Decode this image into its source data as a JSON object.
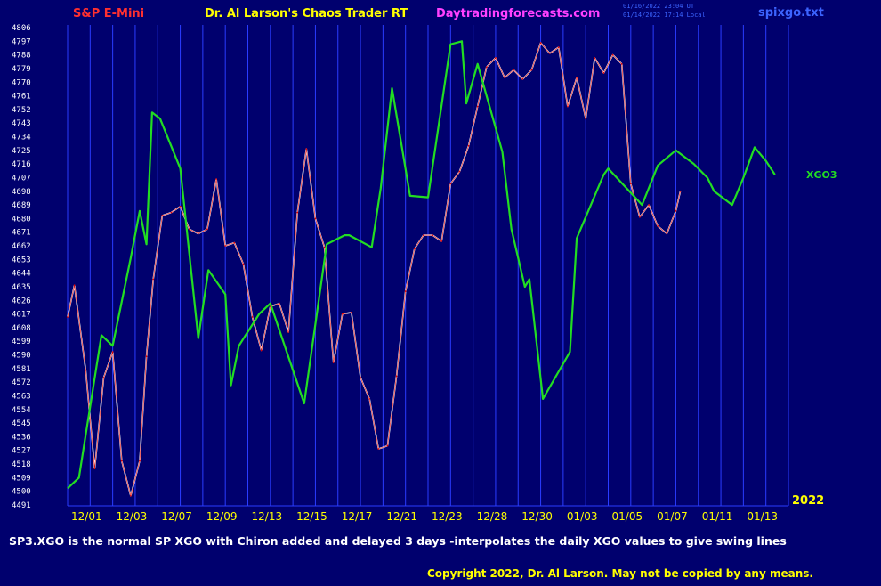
{
  "header": {
    "symbol": "S&P E-Mini",
    "app_title": "Dr. Al Larson's Chaos Trader RT",
    "website": "Daytradingforecasts.com",
    "timestamp_1": "01/16/2022 23:04 UT",
    "timestamp_2": "01/14/2022 17:14 Local",
    "filename": "spixgo.txt"
  },
  "footer": {
    "description": "SP3.XGO is the normal SP XGO with Chiron added and delayed 3 days -interpolates the daily XGO values to give swing lines",
    "copyright": "Copyright 2022, Dr. Al Larson. May not be copied by any means."
  },
  "colors": {
    "background": "#00006e",
    "grid": "#2a3cff",
    "price_line": "#ffffff",
    "price_accent": "#e00000",
    "xgo_line": "#22dd22",
    "tick_labels": "#ffff00",
    "symbol_text": "#ff3030",
    "website_text": "#ff40ff"
  },
  "chart_data": {
    "type": "line",
    "ylim": [
      4491,
      4806
    ],
    "y_ticks": [
      "4806",
      "4797",
      "4788",
      "4779",
      "4770",
      "4761",
      "4752",
      "4743",
      "4734",
      "4725",
      "4716",
      "4707",
      "4698",
      "4689",
      "4680",
      "4671",
      "4662",
      "4653",
      "4644",
      "4635",
      "4626",
      "4617",
      "4608",
      "4599",
      "4590",
      "4581",
      "4572",
      "4563",
      "4554",
      "4545",
      "4536",
      "4527",
      "4518",
      "4509",
      "4500",
      "4491"
    ],
    "x_ticks": [
      "12/01",
      "12/03",
      "12/07",
      "12/09",
      "12/13",
      "12/15",
      "12/17",
      "12/21",
      "12/23",
      "12/28",
      "12/30",
      "01/03",
      "01/05",
      "01/07",
      "01/11",
      "01/13"
    ],
    "year_label": "2022",
    "series": [
      {
        "name": "XGO3",
        "x": [
          0,
          0.5,
          1.5,
          2,
          2.8,
          3.2,
          3.5,
          3.75,
          4.1,
          5,
          5.8,
          6.25,
          7,
          7.25,
          7.6,
          8.5,
          9,
          10.5,
          11.5,
          12.3,
          12.5,
          13.5,
          13.9,
          14.4,
          15.2,
          16,
          17,
          17.5,
          17.7,
          18.2,
          19.3,
          19.7,
          20.3,
          20.5,
          21.1,
          22.3,
          22.6,
          23.8,
          24,
          24.5,
          25.5,
          26.2,
          27,
          27.8,
          28.4,
          28.7,
          29.5,
          30,
          30.5,
          31,
          31.4
        ],
        "y": [
          4502,
          4509,
          4603,
          4596,
          4654,
          4685,
          4663,
          4750,
          4746,
          4713,
          4601,
          4646,
          4630,
          4570,
          4596,
          4617,
          4624,
          4558,
          4663,
          4669,
          4669,
          4661,
          4700,
          4766,
          4695,
          4694,
          4795,
          4797,
          4756,
          4782,
          4724,
          4673,
          4635,
          4640,
          4561,
          4592,
          4667,
          4709,
          4713,
          4705,
          4689,
          4715,
          4725,
          4716,
          4707,
          4698,
          4689,
          4707,
          4727,
          4718,
          4709
        ]
      },
      {
        "name": "S&P E-Mini",
        "x": [
          0,
          0.3,
          0.8,
          1.2,
          1.6,
          2,
          2.4,
          2.8,
          3.2,
          3.5,
          3.8,
          4.2,
          4.6,
          5,
          5.4,
          5.8,
          6.2,
          6.6,
          7,
          7.4,
          7.8,
          8.2,
          8.6,
          9,
          9.4,
          9.8,
          10.2,
          10.6,
          11,
          11.4,
          11.8,
          12.2,
          12.6,
          13,
          13.4,
          13.8,
          14.2,
          14.6,
          15,
          15.4,
          15.8,
          16.2,
          16.6,
          17,
          17.4,
          17.8,
          18.2,
          18.6,
          19,
          19.4,
          19.8,
          20.2,
          20.6,
          21,
          21.4,
          21.8,
          22.2,
          22.6,
          23,
          23.4,
          23.8,
          24.2,
          24.6,
          25,
          25.4,
          25.8,
          26.2,
          26.6,
          27,
          27.2
        ],
        "y": [
          4615,
          4636,
          4580,
          4515,
          4575,
          4592,
          4520,
          4497,
          4520,
          4589,
          4640,
          4682,
          4684,
          4688,
          4673,
          4670,
          4673,
          4706,
          4662,
          4664,
          4650,
          4615,
          4593,
          4622,
          4624,
          4605,
          4684,
          4726,
          4680,
          4661,
          4585,
          4617,
          4618,
          4575,
          4561,
          4528,
          4530,
          4576,
          4632,
          4660,
          4669,
          4669,
          4665,
          4703,
          4711,
          4728,
          4754,
          4780,
          4786,
          4773,
          4778,
          4772,
          4778,
          4796,
          4789,
          4793,
          4754,
          4773,
          4746,
          4786,
          4776,
          4788,
          4782,
          4703,
          4681,
          4689,
          4675,
          4670,
          4685,
          4698
        ]
      }
    ]
  }
}
